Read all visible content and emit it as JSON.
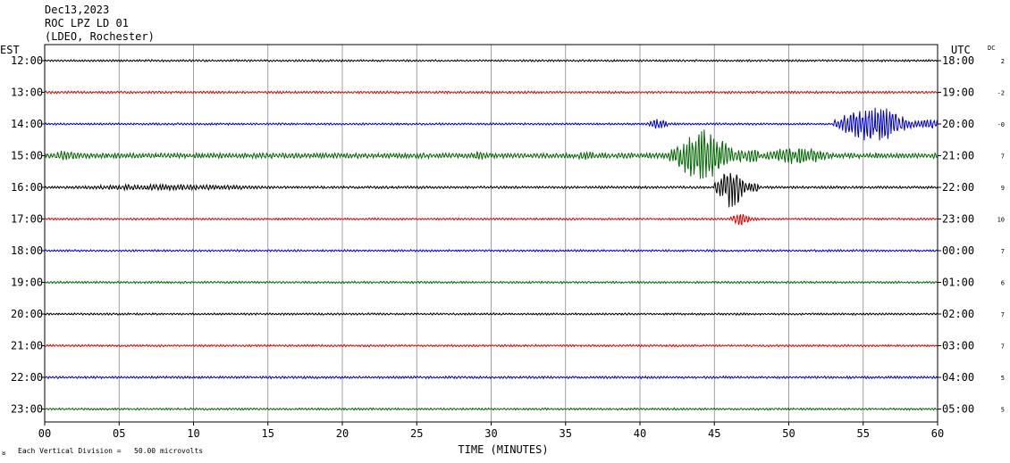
{
  "header": {
    "date": "Dec13,2023",
    "station": "ROC LPZ LD 01",
    "network": "(LDEO, Rochester)"
  },
  "left_axis_label": "EST",
  "right_axis_label": "UTC",
  "dc_label": "DC",
  "footer": {
    "scale_note": "Each Vertical Division =   50.00 microvolts",
    "corner_mark": "ᴚ"
  },
  "colors": {
    "trace_cycle": [
      "#000000",
      "#dd0000",
      "#0000cc",
      "#006600"
    ],
    "grid": "#888888",
    "frame": "#000000"
  },
  "chart_data": {
    "type": "line",
    "xlabel": "TIME (MINUTES)",
    "xlim": [
      0,
      60
    ],
    "x_ticks": [
      "00",
      "05",
      "10",
      "15",
      "20",
      "25",
      "30",
      "35",
      "40",
      "45",
      "50",
      "55",
      "60"
    ],
    "rows": [
      {
        "est": "12:00",
        "utc": "18:00",
        "dc": "2",
        "amp": 0.12,
        "events": []
      },
      {
        "est": "13:00",
        "utc": "19:00",
        "dc": "-2",
        "amp": 0.14,
        "events": []
      },
      {
        "est": "14:00",
        "utc": "20:00",
        "dc": "-0",
        "amp": 0.12,
        "events": [
          {
            "start": 40.5,
            "end": 42.5,
            "amp": 0.6
          },
          {
            "start": 53,
            "end": 60,
            "amp": 2.0
          }
        ]
      },
      {
        "est": "15:00",
        "utc": "21:00",
        "dc": "7",
        "amp": 0.3,
        "events": [
          {
            "start": 0,
            "end": 3.5,
            "amp": 0.6
          },
          {
            "start": 28.5,
            "end": 30.5,
            "amp": 0.5
          },
          {
            "start": 35.5,
            "end": 38,
            "amp": 0.5
          },
          {
            "start": 42,
            "end": 48,
            "amp": 3.0
          },
          {
            "start": 48,
            "end": 55,
            "amp": 1.0
          }
        ]
      },
      {
        "est": "16:00",
        "utc": "22:00",
        "dc": "9",
        "amp": 0.15,
        "events": [
          {
            "start": 0,
            "end": 22,
            "amp": 0.35
          },
          {
            "start": 45,
            "end": 48,
            "amp": 2.3
          }
        ]
      },
      {
        "est": "17:00",
        "utc": "23:00",
        "dc": "10",
        "amp": 0.12,
        "events": [
          {
            "start": 46,
            "end": 48,
            "amp": 0.7
          }
        ]
      },
      {
        "est": "18:00",
        "utc": "00:00",
        "dc": "7",
        "amp": 0.12,
        "events": []
      },
      {
        "est": "19:00",
        "utc": "01:00",
        "dc": "6",
        "amp": 0.12,
        "events": []
      },
      {
        "est": "20:00",
        "utc": "02:00",
        "dc": "7",
        "amp": 0.12,
        "events": []
      },
      {
        "est": "21:00",
        "utc": "03:00",
        "dc": "7",
        "amp": 0.12,
        "events": []
      },
      {
        "est": "22:00",
        "utc": "04:00",
        "dc": "5",
        "amp": 0.14,
        "events": []
      },
      {
        "est": "23:00",
        "utc": "05:00",
        "dc": "5",
        "amp": 0.12,
        "events": []
      }
    ]
  }
}
